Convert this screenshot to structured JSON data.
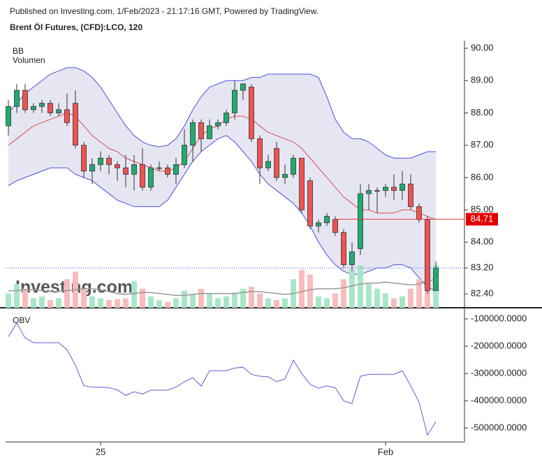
{
  "header": {
    "published": "Published on Investing.com, 1/Feb/2023 - 21:17:16 GMT, Powered by TradingView.",
    "symbol": "Brent Öl Futures, (CFD):LCO, 120"
  },
  "chart_data": [
    {
      "type": "candlestick",
      "legend": [
        "BB",
        "Volumen"
      ],
      "watermark": "Investing.com",
      "categories": [
        null,
        null,
        null,
        null,
        null,
        null,
        null,
        null,
        null,
        null,
        null,
        "25",
        null,
        null,
        null,
        null,
        null,
        null,
        null,
        null,
        null,
        null,
        null,
        null,
        null,
        null,
        null,
        null,
        null,
        null,
        null,
        null,
        null,
        null,
        null,
        null,
        null,
        null,
        null,
        null,
        null,
        null,
        null,
        null,
        null,
        "Feb",
        null,
        null,
        null,
        null,
        null,
        null
      ],
      "open": [
        87.6,
        88.2,
        88.7,
        88.1,
        88.2,
        88.3,
        88.0,
        88.1,
        88.3,
        87.0,
        86.2,
        86.4,
        86.6,
        86.4,
        86.3,
        86.1,
        86.4,
        85.7,
        86.3,
        86.3,
        86.1,
        86.4,
        87.0,
        87.7,
        87.2,
        87.6,
        87.7,
        88.0,
        88.7,
        88.8,
        87.2,
        86.3,
        86.9,
        86.0,
        86.1,
        86.6,
        85.9,
        84.5,
        84.6,
        84.7,
        84.3,
        83.3,
        83.8,
        85.5,
        85.6,
        85.6,
        85.7,
        85.6,
        85.8,
        85.1,
        84.7,
        82.5
      ],
      "high": [
        88.4,
        88.9,
        88.9,
        88.3,
        88.4,
        88.4,
        88.3,
        88.6,
        88.7,
        87.1,
        86.6,
        86.8,
        86.7,
        86.5,
        86.7,
        86.7,
        86.9,
        86.4,
        86.5,
        86.4,
        86.6,
        87.5,
        87.8,
        87.8,
        87.8,
        87.8,
        88.1,
        89.0,
        88.9,
        88.9,
        87.3,
        86.7,
        87.1,
        86.4,
        86.7,
        86.6,
        86.0,
        84.7,
        84.9,
        84.8,
        84.4,
        84.0,
        85.8,
        85.8,
        85.7,
        85.8,
        86.1,
        86.2,
        86.1,
        85.2,
        84.8,
        83.4
      ],
      "low": [
        87.3,
        88.0,
        88.0,
        88.0,
        88.0,
        87.9,
        87.9,
        87.6,
        86.9,
        86.0,
        85.8,
        86.2,
        86.1,
        85.9,
        85.7,
        85.6,
        85.6,
        85.6,
        86.2,
        86.0,
        85.8,
        86.3,
        86.5,
        86.8,
        87.2,
        87.5,
        87.6,
        87.8,
        88.4,
        87.1,
        85.8,
        86.2,
        85.9,
        85.8,
        86.0,
        84.9,
        84.4,
        84.3,
        84.5,
        84.2,
        83.2,
        83.1,
        83.6,
        85.0,
        84.9,
        85.4,
        85.3,
        85.3,
        85.0,
        84.6,
        82.4,
        82.5
      ],
      "close": [
        88.2,
        88.7,
        88.1,
        88.2,
        88.3,
        88.0,
        88.1,
        87.7,
        87.0,
        86.2,
        86.4,
        86.6,
        86.4,
        86.3,
        86.1,
        86.4,
        85.7,
        86.3,
        86.3,
        86.1,
        86.4,
        87.0,
        87.7,
        87.2,
        87.6,
        87.7,
        88.0,
        88.7,
        88.9,
        87.2,
        86.3,
        86.5,
        86.0,
        86.1,
        86.6,
        85.0,
        84.5,
        84.6,
        84.8,
        84.3,
        83.3,
        83.7,
        85.5,
        85.6,
        85.6,
        85.7,
        85.6,
        85.8,
        85.1,
        84.7,
        82.5,
        83.2
      ],
      "bands": {
        "upper": [
          88.0,
          88.3,
          88.6,
          88.8,
          89.0,
          89.2,
          89.3,
          89.4,
          89.4,
          89.3,
          89.1,
          88.8,
          88.4,
          88.0,
          87.6,
          87.3,
          87.1,
          87.0,
          86.95,
          87.0,
          87.2,
          87.6,
          88.1,
          88.5,
          88.8,
          88.9,
          89.0,
          89.0,
          89.0,
          89.1,
          89.1,
          89.2,
          89.2,
          89.2,
          89.2,
          89.2,
          89.2,
          89.1,
          88.5,
          87.8,
          87.4,
          87.2,
          87.2,
          87.1,
          86.9,
          86.7,
          86.6,
          86.6,
          86.6,
          86.7,
          86.8,
          86.8
        ],
        "middle": [
          87.0,
          87.2,
          87.4,
          87.6,
          87.7,
          87.8,
          87.9,
          88.0,
          87.9,
          87.6,
          87.3,
          87.1,
          86.9,
          86.8,
          86.6,
          86.5,
          86.4,
          86.3,
          86.2,
          86.2,
          86.3,
          86.5,
          86.9,
          87.3,
          87.5,
          87.6,
          87.8,
          87.9,
          87.9,
          87.8,
          87.6,
          87.4,
          87.3,
          87.2,
          87.1,
          86.9,
          86.6,
          86.3,
          86.0,
          85.7,
          85.4,
          85.2,
          85.0,
          85.0,
          84.9,
          84.9,
          84.9,
          85.0,
          85.0,
          84.9,
          84.8,
          84.7
        ],
        "lower": [
          85.75,
          85.9,
          86.0,
          86.1,
          86.2,
          86.3,
          86.3,
          86.3,
          86.1,
          86.0,
          85.9,
          85.7,
          85.5,
          85.3,
          85.2,
          85.1,
          85.1,
          85.1,
          85.1,
          85.3,
          85.7,
          86.1,
          86.5,
          86.8,
          87.0,
          87.2,
          87.3,
          87.1,
          86.8,
          86.5,
          86.1,
          85.8,
          85.6,
          85.4,
          85.2,
          84.9,
          84.5,
          84.0,
          83.6,
          83.3,
          83.1,
          83.0,
          83.0,
          83.1,
          83.2,
          83.2,
          83.3,
          83.3,
          83.2,
          82.9,
          82.6,
          82.5
        ],
        "band_color": "#4a4ee0",
        "middle_color": "#e04a4a",
        "fill": "#e6e6f3"
      },
      "volume": [
        15,
        25,
        20,
        10,
        12,
        8,
        10,
        30,
        38,
        20,
        12,
        10,
        8,
        9,
        10,
        28,
        20,
        12,
        8,
        6,
        10,
        18,
        14,
        20,
        15,
        10,
        12,
        16,
        20,
        22,
        15,
        10,
        8,
        10,
        30,
        40,
        35,
        12,
        10,
        15,
        30,
        40,
        45,
        25,
        20,
        15,
        10,
        12,
        20,
        30,
        70,
        45
      ],
      "volume_ma": [
        18,
        18,
        19,
        19,
        18,
        17,
        17,
        18,
        19,
        20,
        20,
        19,
        17,
        15,
        14,
        15,
        16,
        16,
        15,
        14,
        13,
        13,
        14,
        15,
        15,
        15,
        15,
        15,
        16,
        17,
        17,
        16,
        15,
        14,
        15,
        17,
        19,
        20,
        20,
        20,
        21,
        23,
        25,
        26,
        26,
        27,
        26,
        25,
        24,
        25,
        28,
        30
      ],
      "up_color": "#22ab6e",
      "down_color": "#ef5350",
      "volume_up_color": "#a8e6c9",
      "volume_down_color": "#f8bcbc",
      "last_price": {
        "value": 84.71,
        "label": "84.71"
      },
      "ylim": [
        81.97,
        90.24
      ],
      "yticks": [
        {
          "value": 90,
          "label": "90.00"
        },
        {
          "value": 89,
          "label": "89.00"
        },
        {
          "value": 88,
          "label": "88.00"
        },
        {
          "value": 87,
          "label": "87.00"
        },
        {
          "value": 86,
          "label": "86.00"
        },
        {
          "value": 85,
          "label": "85.00"
        },
        {
          "value": 84,
          "label": "84.00"
        },
        {
          "value": 83.2,
          "label": "83.20"
        },
        {
          "value": 82.4,
          "label": "82.40"
        }
      ]
    },
    {
      "type": "line",
      "title": "OBV",
      "color": "#5b5fd6",
      "values": [
        -165000,
        -115000,
        -170000,
        -187000,
        -187000,
        -187000,
        -187000,
        -213000,
        -270000,
        -345000,
        -350000,
        -350000,
        -352000,
        -360000,
        -380000,
        -367000,
        -375000,
        -361000,
        -361000,
        -361000,
        -350000,
        -330000,
        -315000,
        -346000,
        -290000,
        -290000,
        -290000,
        -280000,
        -277000,
        -303000,
        -310000,
        -312000,
        -330000,
        -320000,
        -251000,
        -300000,
        -340000,
        -354000,
        -345000,
        -352000,
        -400000,
        -410000,
        -310000,
        -303000,
        -303000,
        -303000,
        -303000,
        -290000,
        -345000,
        -405000,
        -526000,
        -477000
      ],
      "ylim": [
        -551000,
        -79500
      ],
      "yticks": [
        {
          "value": -100000,
          "label": "-100000.0000"
        },
        {
          "value": -200000,
          "label": "-200000.0000"
        },
        {
          "value": -300000,
          "label": "-300000.0000"
        },
        {
          "value": -400000,
          "label": "-400000.0000"
        },
        {
          "value": -500000,
          "label": "-500000.0000"
        }
      ]
    }
  ]
}
